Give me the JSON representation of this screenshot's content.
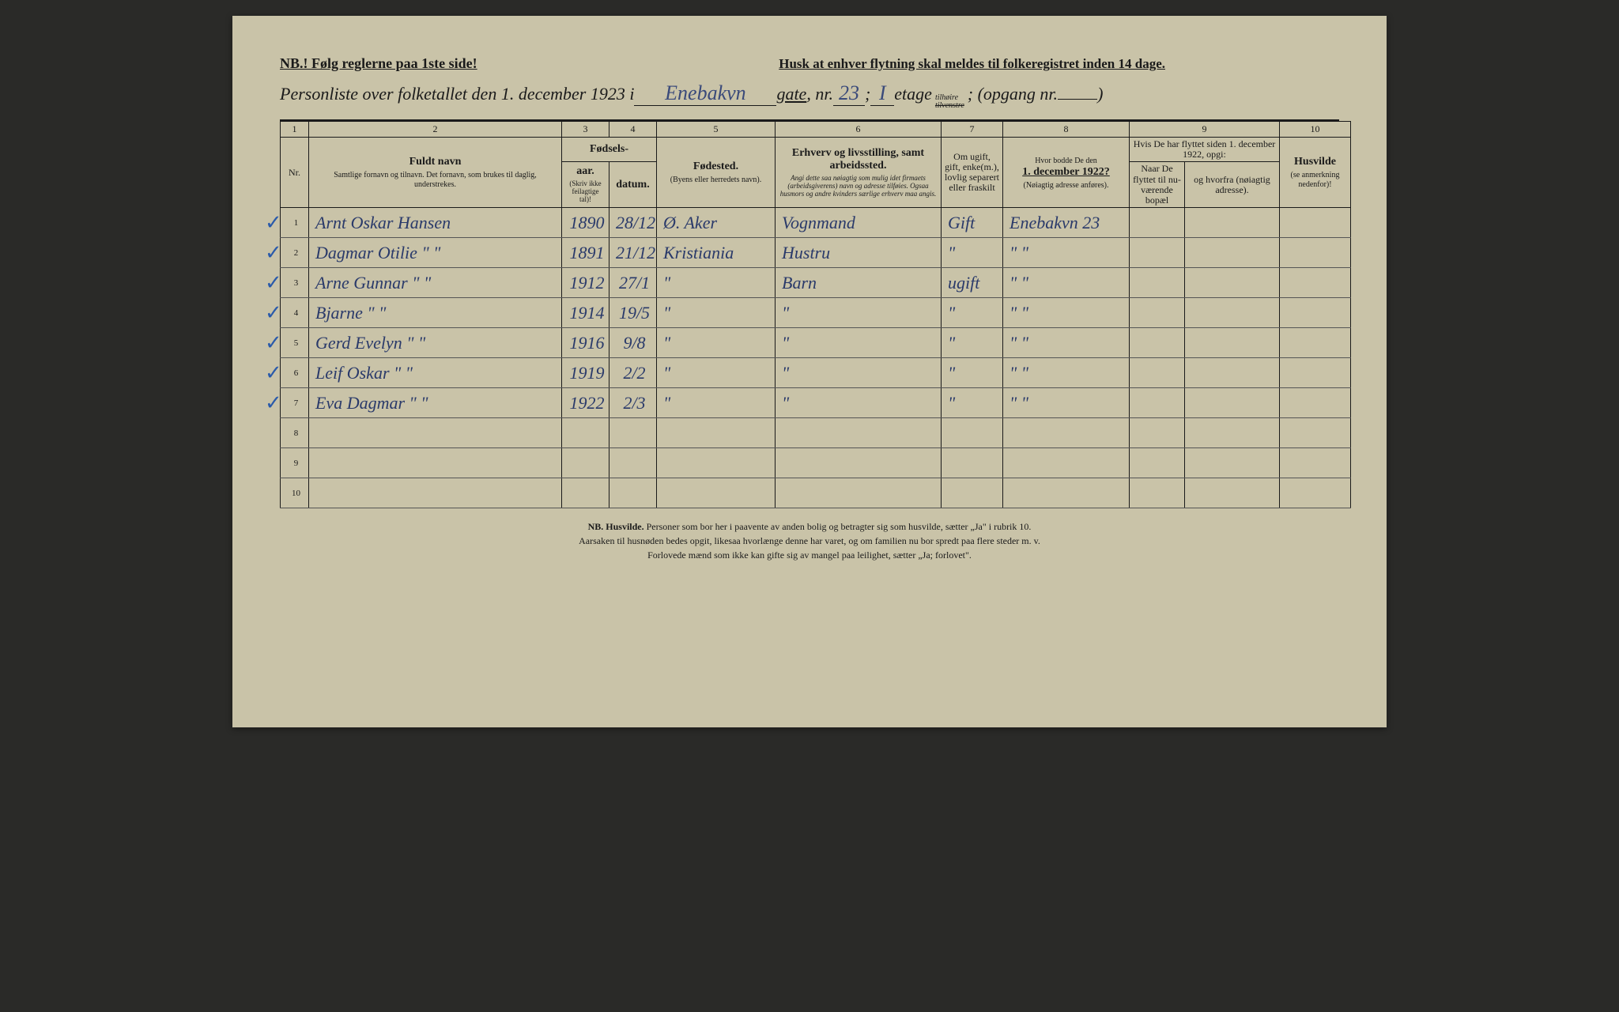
{
  "header": {
    "nb_rule": "NB.! Følg reglerne paa 1ste side!",
    "husk": "Husk at enhver flytning skal meldes til folkeregistret inden 14 dage."
  },
  "title": {
    "prefix": "Personliste over folketallet den 1. december 1923 i",
    "street_hw": "Enebakvn",
    "gate_word": "gate",
    "nr_label": ", nr.",
    "nr_hw": "23",
    "semicolon": " ; ",
    "floor_hw": "I",
    "etage_label": " etage ",
    "tilhoire": "tilhøire",
    "tilvenstre": "tilvenstre",
    "opgang": "; (opgang nr.",
    "opgang_hw": "",
    "close": ")"
  },
  "colnums": [
    "1",
    "2",
    "3",
    "4",
    "5",
    "6",
    "7",
    "8",
    "9",
    "10"
  ],
  "columns": {
    "nr": "Nr.",
    "name_main": "Fuldt navn",
    "name_sub": "Samtlige fornavn og tilnavn.  Det fornavn, som brukes til daglig, understrekes.",
    "fodsels": "Fødsels-",
    "aar": "aar.",
    "datum": "datum.",
    "skriv_ikke": "(Skriv ikke feilagtige tal)!",
    "fodested": "Fødested.",
    "fodested_sub": "(Byens eller herredets navn).",
    "erhverv_main": "Erhverv og livsstilling, samt arbeidssted.",
    "erhverv_sub": "Angi dette saa nøiagtig som mulig idet firmaets (arbeidsgiverens) navn og adresse tilføies. Ogsaa husmors og andre kvinders særlige erhverv maa angis.",
    "ugift": "Om ugift, gift, enke(m.), lovlig separert eller fraskilt",
    "hvor_main": "Hvor bodde De den",
    "hvor_date": "1. december 1922?",
    "hvor_sub": "(Nøiagtig adresse anføres).",
    "hvis": "Hvis De har flyttet siden 1. december 1922, opgi:",
    "naar": "Naar De flyttet til nu-værende bopæl",
    "hvorfra": "og hvorfra (nøiagtig adresse).",
    "husvilde": "Husvilde",
    "husvilde_sub": "(se anmerkning nedenfor)!"
  },
  "rows": [
    {
      "check": "✓",
      "nr": "1",
      "name": "Arnt Oskar Hansen",
      "year": "1890",
      "date": "28/12",
      "birthplace": "Ø. Aker",
      "occupation": "Vognmand",
      "status": "Gift",
      "addr1922": "Enebakvn 23",
      "moved": "",
      "from": "",
      "husvilde": ""
    },
    {
      "check": "✓",
      "nr": "2",
      "name": "Dagmar Otilie    \"     \"",
      "year": "1891",
      "date": "21/12",
      "birthplace": "Kristiania",
      "occupation": "Hustru",
      "status": "\"",
      "addr1922": "\"     \"",
      "moved": "",
      "from": "",
      "husvilde": ""
    },
    {
      "check": "✓",
      "nr": "3",
      "name": "Arne Gunnar    \"     \"",
      "year": "1912",
      "date": "27/1",
      "birthplace": "\"",
      "occupation": "Barn",
      "status": "ugift",
      "addr1922": "\"     \"",
      "moved": "",
      "from": "",
      "husvilde": ""
    },
    {
      "check": "✓",
      "nr": "4",
      "name": "   Bjarne         \"     \"",
      "year": "1914",
      "date": "19/5",
      "birthplace": "\"",
      "occupation": "\"",
      "status": "\"",
      "addr1922": "\"     \"",
      "moved": "",
      "from": "",
      "husvilde": ""
    },
    {
      "check": "✓",
      "nr": "5",
      "name": "Gerd Evelyn    \"     \"",
      "year": "1916",
      "date": "9/8",
      "birthplace": "\"",
      "occupation": "\"",
      "status": "\"",
      "addr1922": "\"     \"",
      "moved": "",
      "from": "",
      "husvilde": ""
    },
    {
      "check": "✓",
      "nr": "6",
      "name": "Leif Oskar      \"     \"",
      "year": "1919",
      "date": "2/2",
      "birthplace": "\"",
      "occupation": "\"",
      "status": "\"",
      "addr1922": "\"     \"",
      "moved": "",
      "from": "",
      "husvilde": ""
    },
    {
      "check": "✓",
      "nr": "7",
      "name": "Eva Dagmar   \"     \"",
      "year": "1922",
      "date": "2/3",
      "birthplace": "\"",
      "occupation": "\"",
      "status": "\"",
      "addr1922": "\"     \"",
      "moved": "",
      "from": "",
      "husvilde": ""
    },
    {
      "check": "",
      "nr": "8",
      "name": "",
      "year": "",
      "date": "",
      "birthplace": "",
      "occupation": "",
      "status": "",
      "addr1922": "",
      "moved": "",
      "from": "",
      "husvilde": ""
    },
    {
      "check": "",
      "nr": "9",
      "name": "",
      "year": "",
      "date": "",
      "birthplace": "",
      "occupation": "",
      "status": "",
      "addr1922": "",
      "moved": "",
      "from": "",
      "husvilde": ""
    },
    {
      "check": "",
      "nr": "10",
      "name": "",
      "year": "",
      "date": "",
      "birthplace": "",
      "occupation": "",
      "status": "",
      "addr1922": "",
      "moved": "",
      "from": "",
      "husvilde": ""
    }
  ],
  "footer": {
    "line1a": "NB.  Husvilde.",
    "line1b": "  Personer som bor her i paavente av anden bolig og betragter sig som husvilde, sætter „Ja\" i rubrik 10.",
    "line2": "Aarsaken til husnøden bedes opgit, likesaa hvorlænge denne har varet, og om familien nu bor spredt paa flere steder m. v.",
    "line3": "Forlovede mænd som ikke kan gifte sig av mangel paa leilighet, sætter „Ja; forlovet\"."
  }
}
